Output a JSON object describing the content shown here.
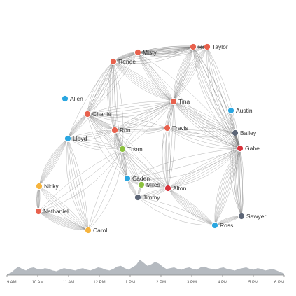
{
  "colors": {
    "red": "#e8614d",
    "blue": "#2aa6e0",
    "green": "#8cc13f",
    "orange": "#f6b43e",
    "gray": "#5d6677",
    "darkred": "#d8323b",
    "edge": "#666666",
    "timeline_fill": "#b5bac0",
    "axis": "#888888"
  },
  "network": {
    "nodes": [
      {
        "id": "misty",
        "label": "Misty",
        "color": "red"
      },
      {
        "id": "ron2",
        "label": "Ron",
        "color": "red"
      },
      {
        "id": "taylor",
        "label": "Taylor",
        "color": "red"
      },
      {
        "id": "renee",
        "label": "Renee",
        "color": "red"
      },
      {
        "id": "allen",
        "label": "Allen",
        "color": "blue"
      },
      {
        "id": "tina",
        "label": "Tina",
        "color": "red"
      },
      {
        "id": "austin",
        "label": "Austin",
        "color": "blue"
      },
      {
        "id": "charlie",
        "label": "Charlie",
        "color": "red"
      },
      {
        "id": "ron",
        "label": "Ron",
        "color": "red"
      },
      {
        "id": "travis",
        "label": "Travis",
        "color": "red"
      },
      {
        "id": "bailey",
        "label": "Bailey",
        "color": "gray"
      },
      {
        "id": "lloyd",
        "label": "Lloyd",
        "color": "blue"
      },
      {
        "id": "gabe",
        "label": "Gabe",
        "color": "darkred"
      },
      {
        "id": "thom",
        "label": "Thom",
        "color": "green"
      },
      {
        "id": "caden",
        "label": "Caden",
        "color": "blue"
      },
      {
        "id": "miles",
        "label": "Miles",
        "color": "green"
      },
      {
        "id": "alton",
        "label": "Alton",
        "color": "darkred"
      },
      {
        "id": "jimmy",
        "label": "Jimmy",
        "color": "gray"
      },
      {
        "id": "nicky",
        "label": "Nicky",
        "color": "orange"
      },
      {
        "id": "nathaniel",
        "label": "Nathaniel",
        "color": "red"
      },
      {
        "id": "carol",
        "label": "Carol",
        "color": "orange"
      },
      {
        "id": "sawyer",
        "label": "Sawyer",
        "color": "gray"
      },
      {
        "id": "ross",
        "label": "Ross",
        "color": "blue"
      }
    ],
    "links": [
      [
        "misty",
        "renee",
        9
      ],
      [
        "misty",
        "ron2",
        9
      ],
      [
        "misty",
        "taylor",
        7
      ],
      [
        "ron2",
        "taylor",
        9
      ],
      [
        "renee",
        "charlie",
        5
      ],
      [
        "renee",
        "tina",
        7
      ],
      [
        "renee",
        "ron",
        5
      ],
      [
        "renee",
        "ron2",
        5
      ],
      [
        "misty",
        "tina",
        6
      ],
      [
        "ron2",
        "tina",
        7
      ],
      [
        "taylor",
        "tina",
        6
      ],
      [
        "taylor",
        "gabe",
        6
      ],
      [
        "ron2",
        "gabe",
        5
      ],
      [
        "misty",
        "charlie",
        4
      ],
      [
        "charlie",
        "ron",
        7
      ],
      [
        "charlie",
        "lloyd",
        7
      ],
      [
        "charlie",
        "thom",
        5
      ],
      [
        "charlie",
        "tina",
        5
      ],
      [
        "lloyd",
        "nicky",
        8
      ],
      [
        "lloyd",
        "carol",
        6
      ],
      [
        "nicky",
        "nathaniel",
        8
      ],
      [
        "nathaniel",
        "carol",
        8
      ],
      [
        "nicky",
        "carol",
        5
      ],
      [
        "lloyd",
        "thom",
        4
      ],
      [
        "ron",
        "thom",
        5
      ],
      [
        "ron",
        "travis",
        4
      ],
      [
        "ron",
        "tina",
        5
      ],
      [
        "tina",
        "travis",
        4
      ],
      [
        "tina",
        "alton",
        5
      ],
      [
        "tina",
        "bailey",
        5
      ],
      [
        "tina",
        "gabe",
        6
      ],
      [
        "bailey",
        "gabe",
        9
      ],
      [
        "austin",
        "bailey",
        4
      ],
      [
        "gabe",
        "sawyer",
        8
      ],
      [
        "gabe",
        "ross",
        8
      ],
      [
        "sawyer",
        "ross",
        6
      ],
      [
        "alton",
        "ross",
        8
      ],
      [
        "alton",
        "gabe",
        6
      ],
      [
        "alton",
        "miles",
        4
      ],
      [
        "caden",
        "miles",
        4
      ],
      [
        "caden",
        "jimmy",
        5
      ],
      [
        "jimmy",
        "alton",
        4
      ],
      [
        "thom",
        "caden",
        5
      ],
      [
        "thom",
        "miles",
        4
      ],
      [
        "travis",
        "bailey",
        4
      ],
      [
        "travis",
        "alton",
        3
      ],
      [
        "ron",
        "caden",
        4
      ],
      [
        "lloyd",
        "ron",
        4
      ],
      [
        "charlie",
        "caden",
        3
      ],
      [
        "thom",
        "alton",
        4
      ],
      [
        "nathaniel",
        "thom",
        3
      ],
      [
        "carol",
        "thom",
        3
      ],
      [
        "bailey",
        "sawyer",
        5
      ],
      [
        "ron2",
        "bailey",
        4
      ],
      [
        "renee",
        "thom",
        3
      ],
      [
        "misty",
        "gabe",
        3
      ],
      [
        "jimmy",
        "ross",
        3
      ],
      [
        "caden",
        "gabe",
        3
      ],
      [
        "lloyd",
        "renee",
        3
      ],
      [
        "travis",
        "gabe",
        4
      ],
      [
        "charlie",
        "travis",
        3
      ],
      [
        "ron",
        "alton",
        3
      ],
      [
        "miles",
        "jimmy",
        4
      ],
      [
        "tina",
        "thom",
        3
      ]
    ]
  },
  "timeline": {
    "ticks": [
      "9 AM",
      "10 AM",
      "11 AM",
      "12 PM",
      "1 PM",
      "2 PM",
      "3 PM",
      "4 PM",
      "5 PM",
      "6 PM"
    ],
    "activity": [
      0.05,
      0.15,
      0.35,
      0.55,
      0.4,
      0.3,
      0.45,
      0.5,
      0.4,
      0.35,
      0.45,
      0.4,
      0.3,
      0.25,
      0.35,
      0.45,
      0.4,
      0.35,
      0.3,
      0.4,
      0.45,
      0.35,
      0.3,
      0.4,
      0.5,
      0.45,
      0.35,
      0.3,
      0.4,
      0.55,
      0.6,
      0.45,
      0.35,
      0.5,
      0.65,
      1.0,
      0.8,
      0.6,
      0.7,
      0.85,
      0.75,
      0.55,
      0.4,
      0.45,
      0.5,
      0.4,
      0.35,
      0.45,
      0.5,
      0.4,
      0.35,
      0.5,
      0.55,
      0.45,
      0.4,
      0.35,
      0.45,
      0.5,
      0.4,
      0.35,
      0.3,
      0.4,
      0.45,
      0.5,
      0.4,
      0.35,
      0.45,
      0.4,
      0.3,
      0.35,
      0.4,
      0.3,
      0.2,
      0.1
    ]
  }
}
